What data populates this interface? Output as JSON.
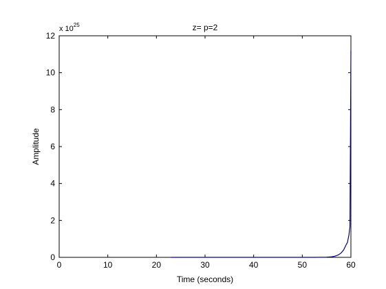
{
  "chart_data": {
    "type": "line",
    "title": "z= p=2",
    "xlabel": "Time (seconds)",
    "ylabel": "Amplitude",
    "xlim": [
      0,
      60
    ],
    "ylim": [
      0,
      12
    ],
    "y_multiplier": "x 10",
    "y_multiplier_exponent": "25",
    "xticks": [
      0,
      10,
      20,
      30,
      40,
      50,
      60
    ],
    "yticks": [
      0,
      2,
      4,
      6,
      8,
      10,
      12
    ],
    "grid": false,
    "series": [
      {
        "color": "#00008b",
        "x": [
          23,
          30,
          40,
          50,
          52,
          54,
          55,
          55.5,
          56,
          56.5,
          57,
          57.5,
          58,
          58.5,
          59,
          59.3,
          59.6,
          59.8,
          60
        ],
        "y": [
          0,
          0,
          0,
          0.0001,
          0.0006,
          0.004,
          0.011,
          0.019,
          0.031,
          0.052,
          0.087,
          0.145,
          0.24,
          0.4,
          0.67,
          0.82,
          1.22,
          1.65,
          11.2
        ]
      }
    ]
  }
}
